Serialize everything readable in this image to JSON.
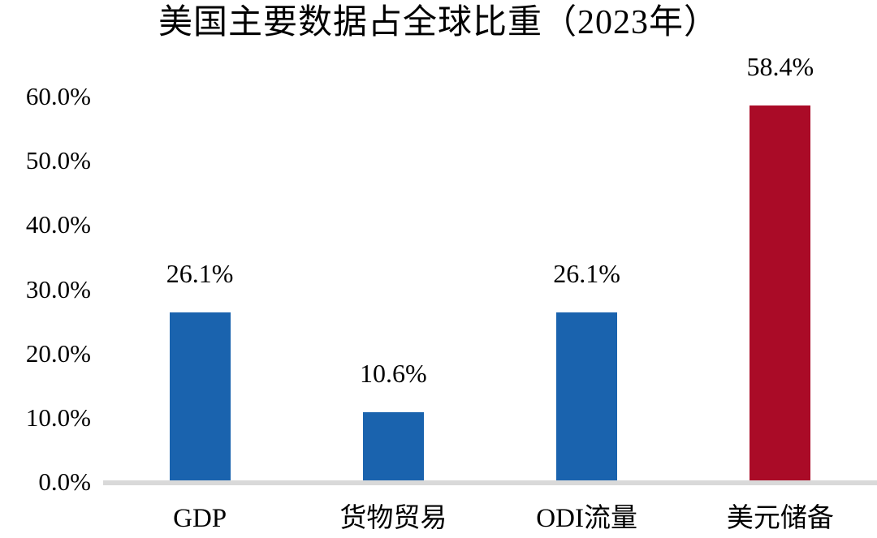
{
  "title": "美国主要数据占全球比重（2023年）",
  "colors": {
    "bar_blue": "#1a63ae",
    "bar_red": "#aa0b27",
    "axis_line": "#d9d9d9",
    "text": "#000000",
    "background": "#ffffff"
  },
  "chart_data": {
    "type": "bar",
    "title": "美国主要数据占全球比重（2023年）",
    "categories": [
      "GDP",
      "货物贸易",
      "ODI流量",
      "美元储备"
    ],
    "values": [
      26.1,
      10.6,
      26.1,
      58.4
    ],
    "data_labels": [
      "26.1%",
      "10.6%",
      "26.1%",
      "58.4%"
    ],
    "bar_colors": [
      "#1a63ae",
      "#1a63ae",
      "#1a63ae",
      "#aa0b27"
    ],
    "xlabel": "",
    "ylabel": "",
    "ylim": [
      0,
      60
    ],
    "ytick_step": 10,
    "yticks": [
      0,
      10,
      20,
      30,
      40,
      50,
      60
    ],
    "ytick_labels": [
      "0.0%",
      "10.0%",
      "20.0%",
      "30.0%",
      "40.0%",
      "50.0%",
      "60.0%"
    ],
    "grid": false,
    "legend": "none"
  }
}
